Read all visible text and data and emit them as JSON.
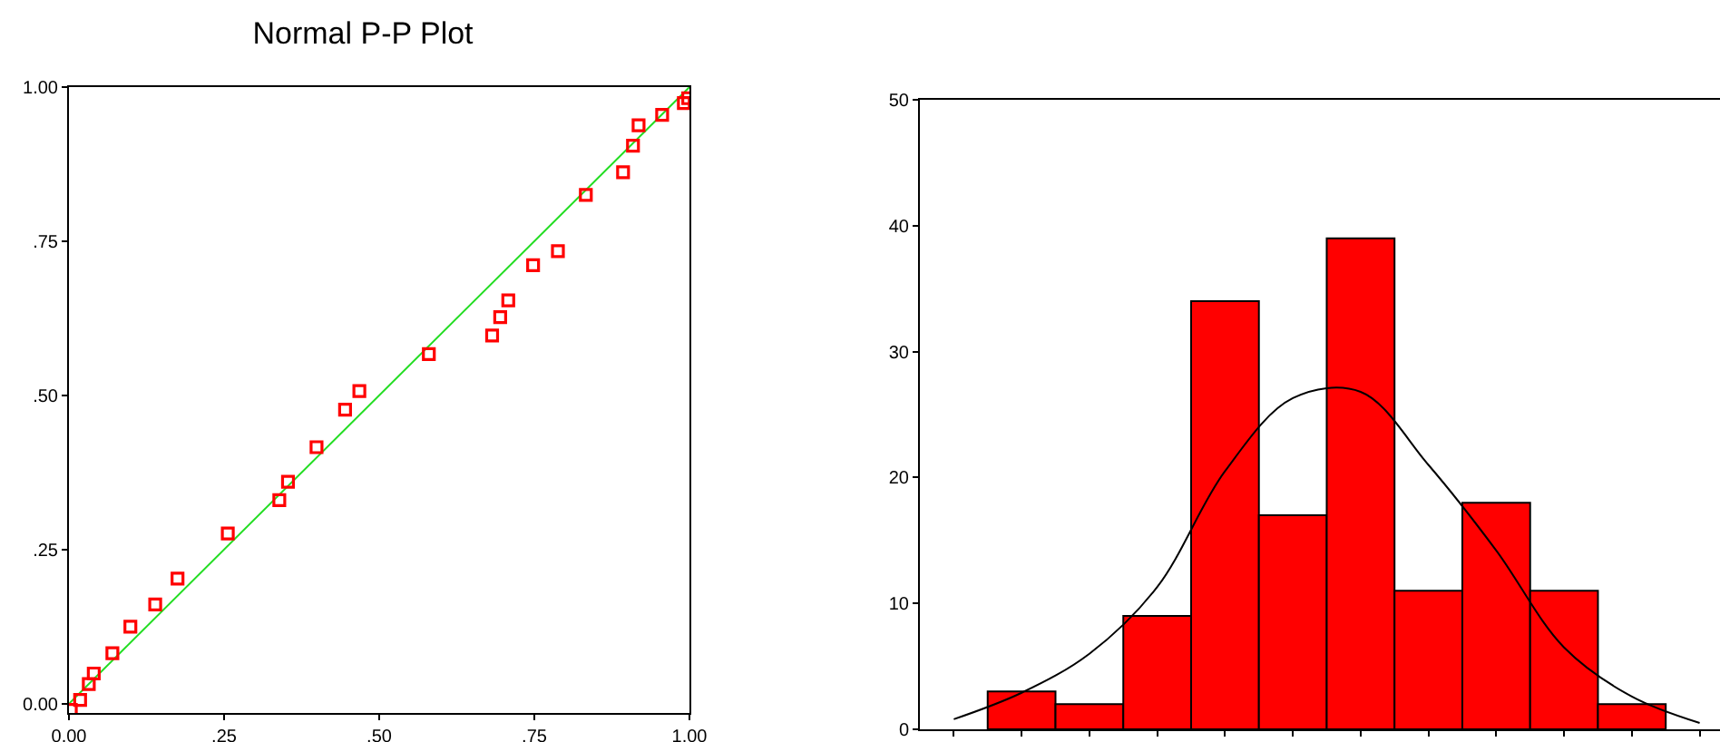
{
  "chart_data": [
    {
      "type": "scatter",
      "title": "Normal P-P Plot",
      "grid": false,
      "xlim": [
        0,
        1
      ],
      "ylim": [
        -0.015,
        1
      ],
      "xticks": [
        {
          "value": 0,
          "label": "0.00"
        },
        {
          "value": 0.25,
          "label": ".25"
        },
        {
          "value": 0.5,
          "label": ".50"
        },
        {
          "value": 0.75,
          "label": ".75"
        },
        {
          "value": 1,
          "label": "1.00"
        }
      ],
      "yticks": [
        {
          "value": 0,
          "label": "0.00"
        },
        {
          "value": 0.25,
          "label": ".25"
        },
        {
          "value": 0.5,
          "label": ".50"
        },
        {
          "value": 0.75,
          "label": ".75"
        },
        {
          "value": 1,
          "label": "1.00"
        }
      ],
      "series": [
        {
          "marker": "square",
          "color": "#ff0000",
          "x": [
            0.003,
            0.018,
            0.032,
            0.04,
            0.07,
            0.099,
            0.139,
            0.175,
            0.256,
            0.339,
            0.353,
            0.399,
            0.445,
            0.468,
            0.58,
            0.682,
            0.695,
            0.708,
            0.748,
            0.788,
            0.833,
            0.893,
            0.909,
            0.918,
            0.956,
            0.991,
            0.998
          ],
          "values": [
            -0.01,
            0.006,
            0.032,
            0.049,
            0.082,
            0.125,
            0.161,
            0.203,
            0.276,
            0.33,
            0.36,
            0.416,
            0.477,
            0.507,
            0.567,
            0.597,
            0.627,
            0.654,
            0.711,
            0.734,
            0.825,
            0.862,
            0.905,
            0.938,
            0.955,
            0.974,
            0.982
          ]
        },
        {
          "type": "line",
          "color": "#22dd22",
          "x": [
            0,
            1
          ],
          "values": [
            0,
            1
          ]
        }
      ]
    },
    {
      "type": "bar",
      "grid": false,
      "tick_labels": "y",
      "categories": [
        null,
        null,
        null,
        null,
        null,
        null,
        null,
        null,
        null,
        null,
        null,
        null
      ],
      "ylim": [
        0,
        50
      ],
      "yticks": [
        0,
        10,
        20,
        30,
        40,
        50
      ],
      "series": [
        {
          "color": "#ff0000",
          "values": [
            null,
            3,
            2,
            9,
            34,
            17,
            39,
            11,
            18,
            11,
            2,
            null
          ]
        },
        {
          "type": "line",
          "color": "#000000",
          "values": [
            0.8,
            2.9,
            6,
            11.3,
            20.5,
            26.3,
            26.8,
            21,
            14.2,
            6.5,
            2.6,
            0.5
          ]
        }
      ]
    }
  ]
}
